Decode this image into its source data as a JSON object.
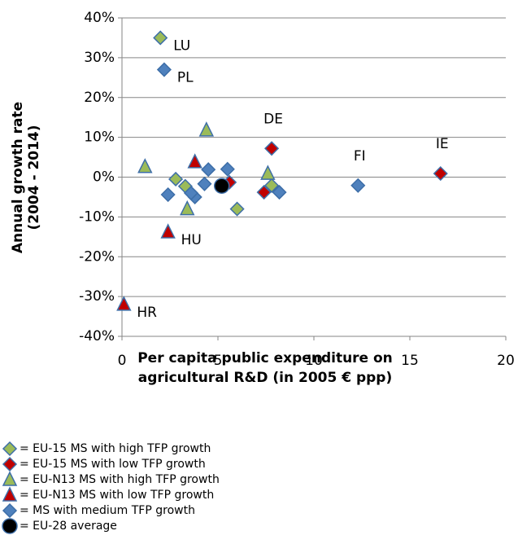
{
  "chart_data": {
    "type": "scatter",
    "xlabel": [
      "Per capita public expenditure on",
      "agricultural R&D (in 2005 € ppp)"
    ],
    "ylabel": [
      "Annual growth rate",
      "(2004 - 2014)"
    ],
    "xlim": [
      0,
      20
    ],
    "xticks": [
      0,
      5,
      10,
      15,
      20
    ],
    "ylim": [
      -40,
      40
    ],
    "yticks": [
      {
        "value": -40,
        "label": "-40%"
      },
      {
        "value": -30,
        "label": "-30%"
      },
      {
        "value": -20,
        "label": "-20%"
      },
      {
        "value": -10,
        "label": "-10%"
      },
      {
        "value": 0,
        "label": "0%"
      },
      {
        "value": 10,
        "label": "10%"
      },
      {
        "value": 20,
        "label": "20%"
      },
      {
        "value": 30,
        "label": "30%"
      },
      {
        "value": 40,
        "label": "40%"
      }
    ],
    "grid": true,
    "series": [
      {
        "name": "= EU-15 MS with high TFP growth",
        "marker": "diamond",
        "color": "#9bbb59",
        "x": [
          2.0,
          2.8,
          3.3,
          6.0,
          7.8
        ],
        "y": [
          35,
          -0.5,
          -2.3,
          -8,
          -2.1
        ],
        "labels": [
          "LU",
          null,
          null,
          null,
          null
        ]
      },
      {
        "name": "= EU-15 MS with low TFP growth",
        "marker": "diamond",
        "color": "#c00000",
        "x": [
          7.8,
          5.6,
          7.4,
          16.6
        ],
        "y": [
          7.2,
          -1.3,
          -3.8,
          0.9
        ],
        "labels": [
          "DE",
          null,
          null,
          "IE"
        ]
      },
      {
        "name": "= EU-N13 MS with high TFP growth",
        "marker": "triangle",
        "color": "#9bbb59",
        "x": [
          1.2,
          4.4,
          3.4,
          7.6
        ],
        "y": [
          2.6,
          11.8,
          -8,
          0.9
        ],
        "labels": [
          null,
          null,
          null,
          null
        ]
      },
      {
        "name": "= EU-N13 MS with low TFP growth",
        "marker": "triangle",
        "color": "#c00000",
        "x": [
          0.1,
          2.4,
          3.8
        ],
        "y": [
          -32,
          -13.8,
          3.8
        ],
        "labels": [
          "HR",
          "HU",
          null
        ]
      },
      {
        "name": "= MS with medium TFP growth",
        "marker": "diamond",
        "color": "#4f81bd",
        "x": [
          2.2,
          2.4,
          3.8,
          4.5,
          4.3,
          5.5,
          8.2,
          12.3,
          3.6
        ],
        "y": [
          27,
          -4.4,
          -5,
          1.9,
          -1.7,
          2,
          -3.8,
          -2.1,
          -4
        ],
        "labels": [
          "PL",
          null,
          null,
          null,
          null,
          null,
          null,
          "FI",
          null
        ]
      },
      {
        "name": "= EU-28 average",
        "marker": "circle",
        "color": "#000000",
        "x": [
          5.2
        ],
        "y": [
          -2.2
        ],
        "labels": [
          null
        ]
      }
    ]
  }
}
